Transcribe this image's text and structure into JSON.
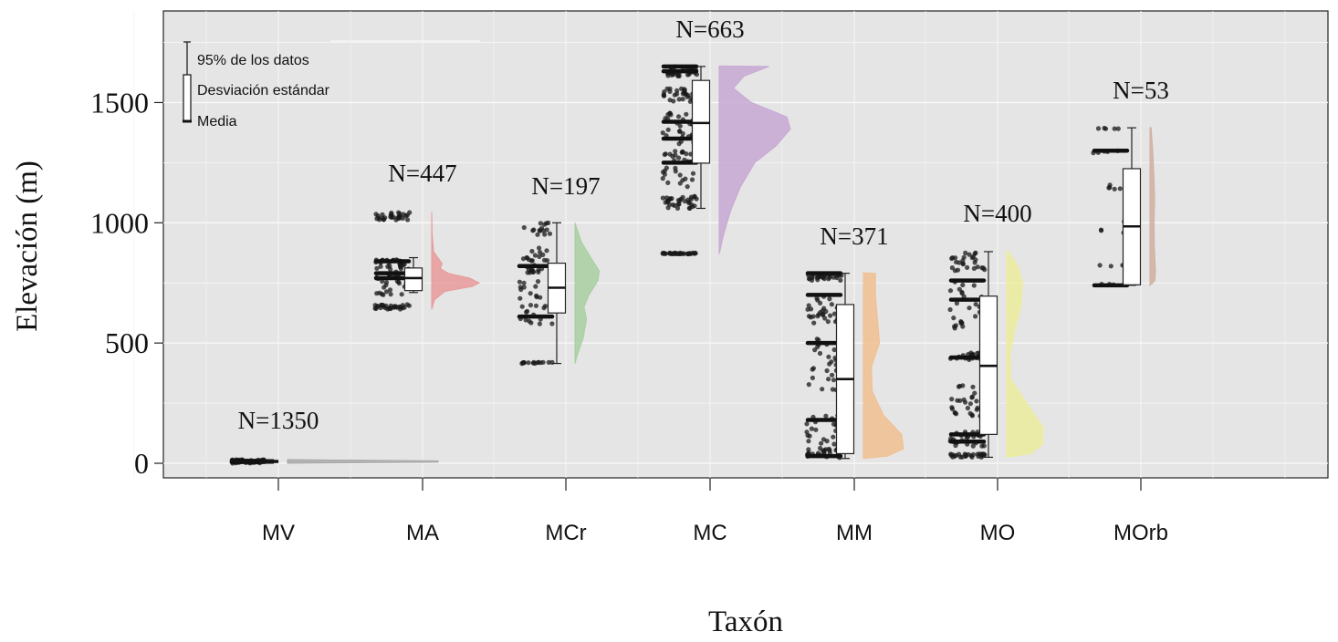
{
  "chart_data": {
    "type": "raincloud",
    "xlabel": "Taxón",
    "ylabel": "Elevación (m)",
    "ylim": [
      -70,
      1880
    ],
    "yticks": [
      0,
      500,
      1000,
      1500
    ],
    "grid": true,
    "legend": {
      "placement": "top-left",
      "items": [
        "95% de los datos",
        "Desviación estándar",
        "Media"
      ]
    },
    "categories": [
      "MV",
      "MA",
      "MCr",
      "MC",
      "MM",
      "MO",
      "MOrb"
    ],
    "n_labels": [
      "N=1350",
      "N=447",
      "N=197",
      "N=663",
      "N=371",
      "N=400",
      "N=53"
    ],
    "groups": [
      {
        "name": "MV",
        "n": 1350,
        "min": 0,
        "q1": 3,
        "median": 8,
        "q3": 12,
        "max": 15,
        "color": "#a9a9a9"
      },
      {
        "name": "MA",
        "n": 447,
        "min": 710,
        "q1": 718,
        "median": 770,
        "q3": 812,
        "max": 855,
        "color": "#e89a9a"
      },
      {
        "name": "MCr",
        "n": 197,
        "min": 415,
        "q1": 625,
        "median": 730,
        "q3": 832,
        "max": 1000,
        "color": "#a8cfa0"
      },
      {
        "name": "MC",
        "n": 663,
        "min": 1060,
        "q1": 1248,
        "median": 1415,
        "q3": 1592,
        "max": 1650,
        "color": "#c8a8d4"
      },
      {
        "name": "MM",
        "n": 371,
        "min": 20,
        "q1": 40,
        "median": 350,
        "q3": 660,
        "max": 790,
        "color": "#f0c090"
      },
      {
        "name": "MO",
        "n": 400,
        "min": 25,
        "q1": 120,
        "median": 405,
        "q3": 695,
        "max": 880,
        "color": "#ecec9e"
      },
      {
        "name": "MOrb",
        "n": 53,
        "min": 740,
        "q1": 742,
        "median": 985,
        "q3": 1225,
        "max": 1395,
        "color": "#d0b0a0"
      }
    ]
  }
}
